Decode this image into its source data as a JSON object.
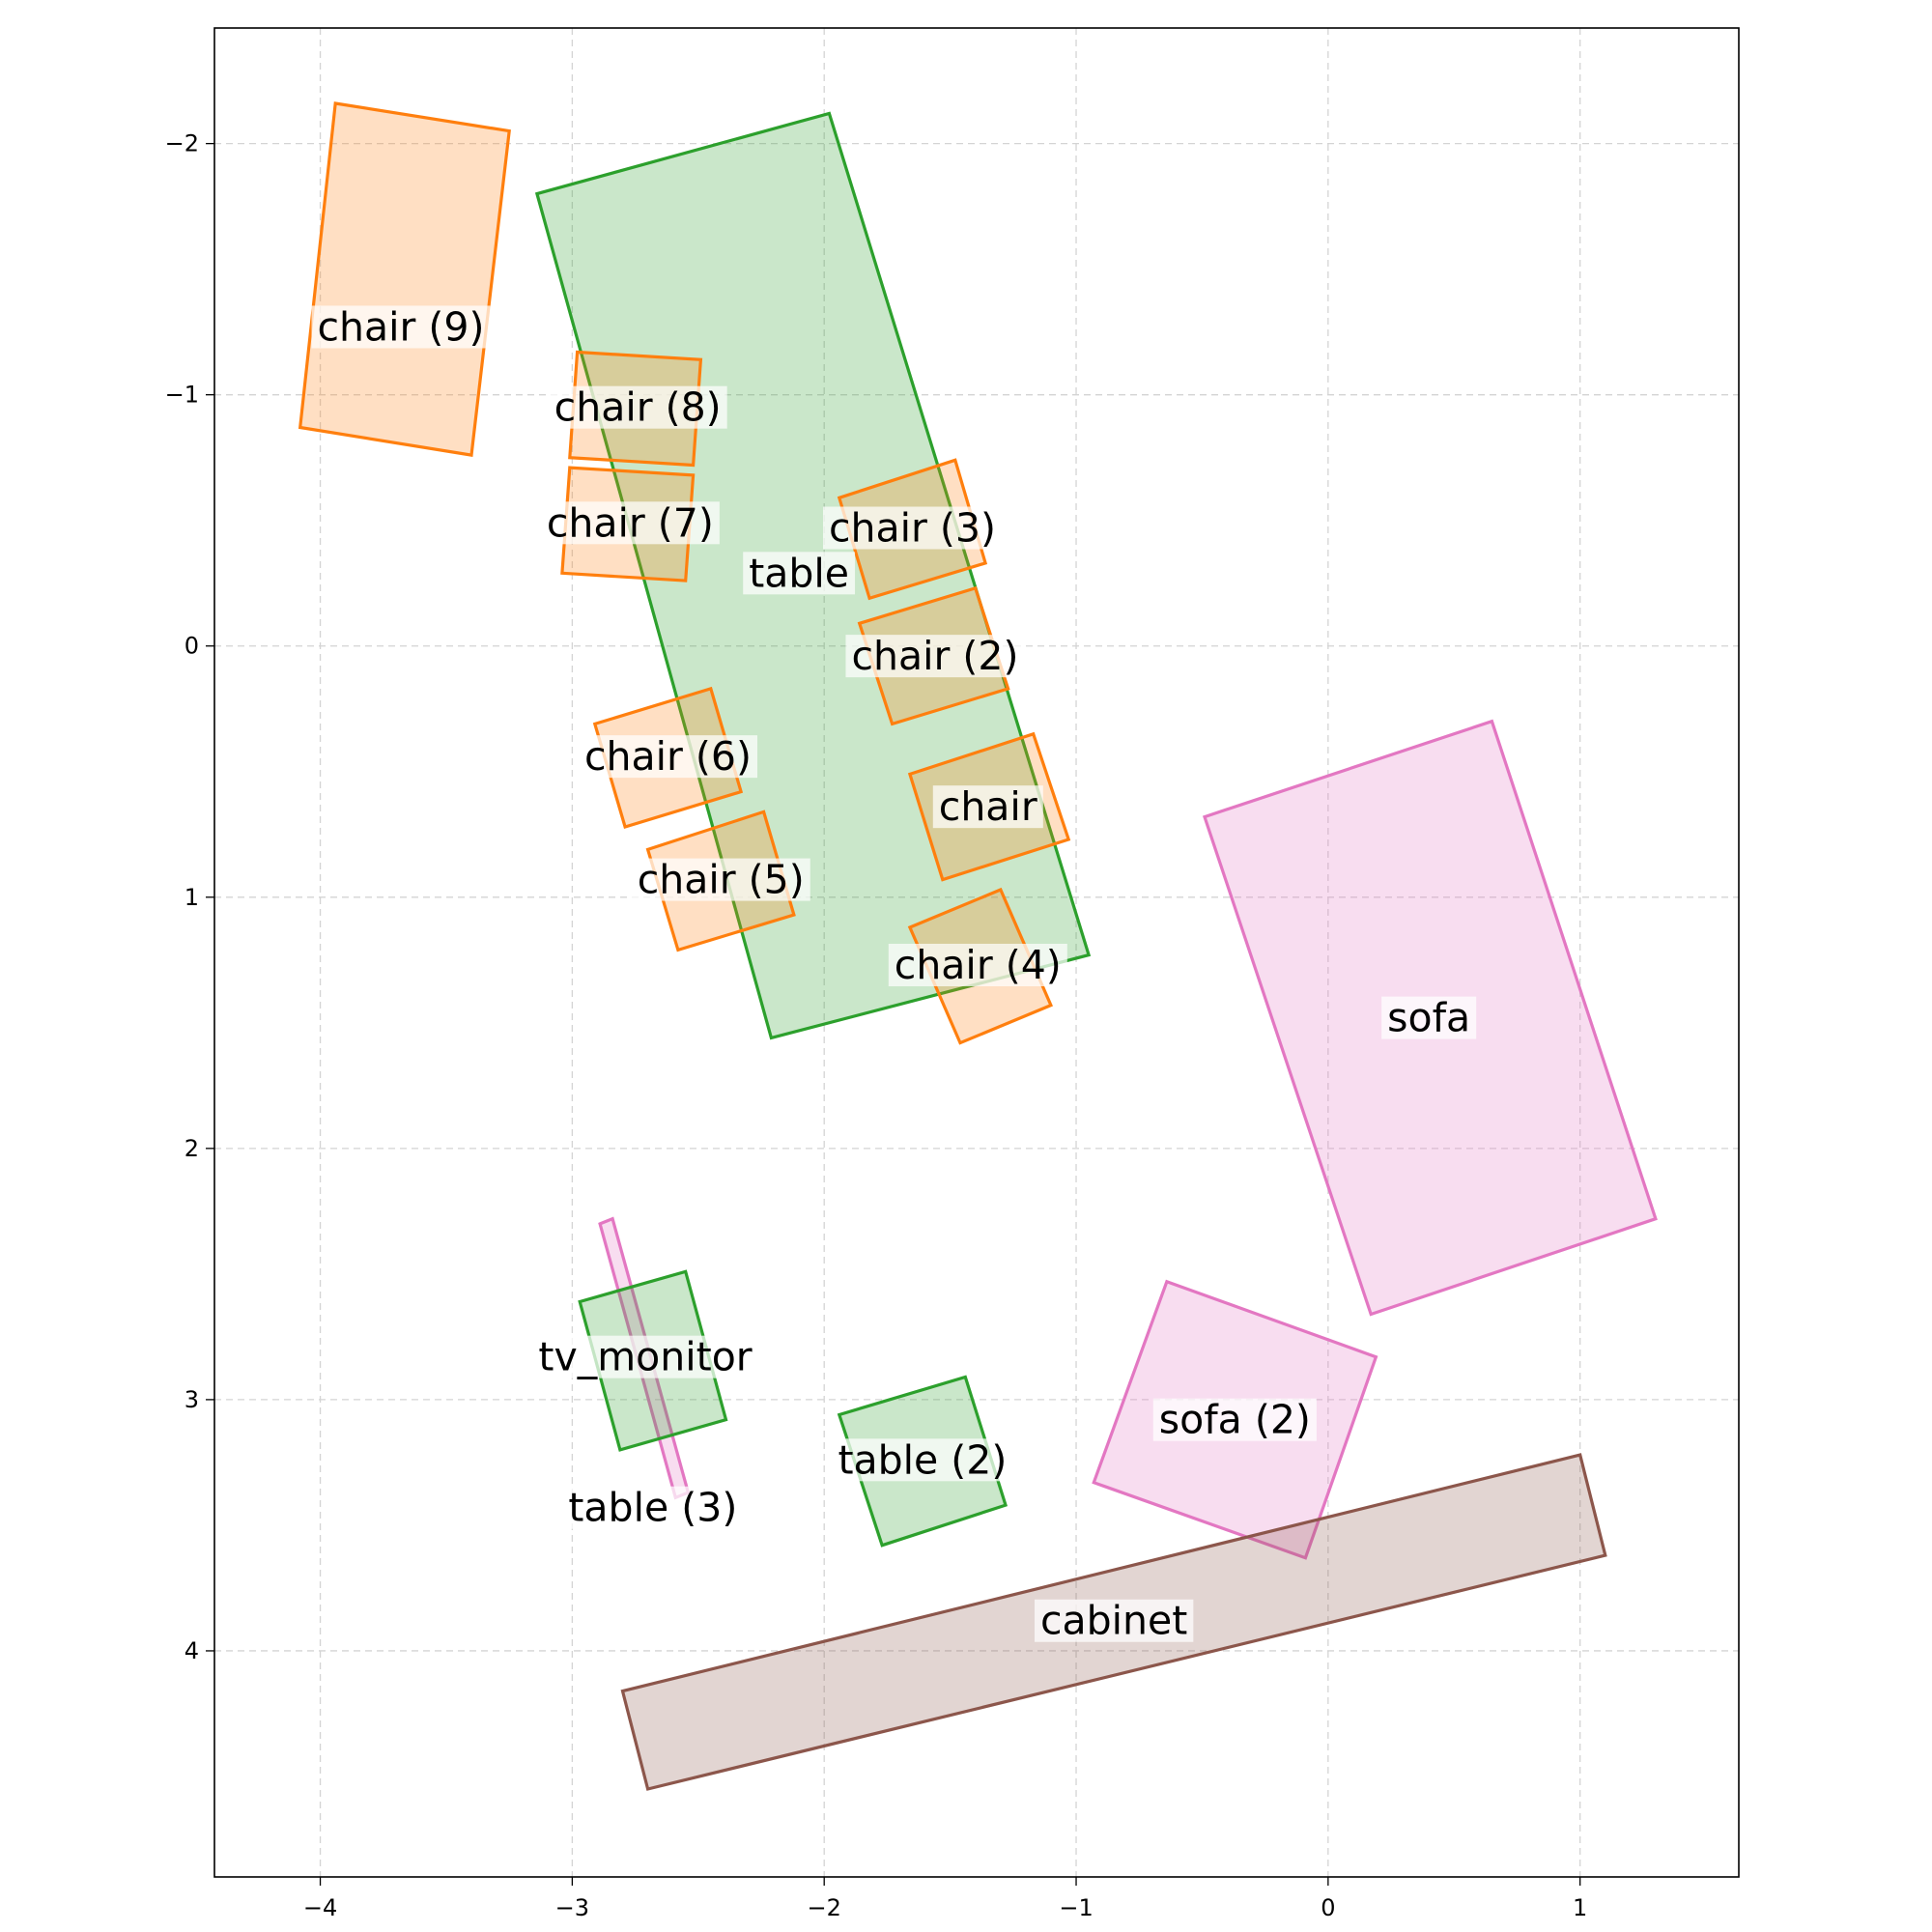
{
  "chart_data": {
    "type": "scatter",
    "title": "",
    "xlabel": "",
    "ylabel": "",
    "xlim": [
      -4.42,
      1.63
    ],
    "ylim": [
      4.9,
      -2.46
    ],
    "y_inverted": true,
    "grid": true,
    "x_ticks": [
      {
        "value": -4,
        "label": "−4"
      },
      {
        "value": -3,
        "label": "−3"
      },
      {
        "value": -2,
        "label": "−2"
      },
      {
        "value": -1,
        "label": "−1"
      },
      {
        "value": 0,
        "label": "0"
      },
      {
        "value": 1,
        "label": "1"
      }
    ],
    "y_ticks": [
      {
        "value": -2,
        "label": "−2"
      },
      {
        "value": -1,
        "label": "−1"
      },
      {
        "value": 0,
        "label": "0"
      },
      {
        "value": 1,
        "label": "1"
      },
      {
        "value": 2,
        "label": "2"
      },
      {
        "value": 3,
        "label": "3"
      },
      {
        "value": 4,
        "label": "4"
      }
    ],
    "colors": {
      "chair": "#ff7f0e",
      "table": "#2ca02c",
      "sofa": "#e377c2",
      "cabinet": "#8c564b"
    },
    "objects": [
      {
        "label": "table",
        "category": "table",
        "polygon": [
          [
            -3.14,
            -1.8
          ],
          [
            -1.98,
            -2.12
          ],
          [
            -0.95,
            1.23
          ],
          [
            -2.21,
            1.56
          ]
        ],
        "label_at": [
          -2.1,
          -0.29
        ]
      },
      {
        "label": "chair (9)",
        "category": "chair",
        "polygon": [
          [
            -3.94,
            -2.16
          ],
          [
            -3.25,
            -2.05
          ],
          [
            -3.4,
            -0.76
          ],
          [
            -4.08,
            -0.87
          ]
        ],
        "label_at": [
          -3.68,
          -1.27
        ]
      },
      {
        "label": "chair (8)",
        "category": "chair",
        "polygon": [
          [
            -2.98,
            -1.17
          ],
          [
            -2.49,
            -1.14
          ],
          [
            -2.52,
            -0.72
          ],
          [
            -3.01,
            -0.75
          ]
        ],
        "label_at": [
          -2.74,
          -0.95
        ]
      },
      {
        "label": "chair (7)",
        "category": "chair",
        "polygon": [
          [
            -3.01,
            -0.71
          ],
          [
            -2.52,
            -0.68
          ],
          [
            -2.55,
            -0.26
          ],
          [
            -3.04,
            -0.29
          ]
        ],
        "label_at": [
          -2.77,
          -0.49
        ]
      },
      {
        "label": "chair (3)",
        "category": "chair",
        "polygon": [
          [
            -1.94,
            -0.59
          ],
          [
            -1.48,
            -0.74
          ],
          [
            -1.36,
            -0.33
          ],
          [
            -1.82,
            -0.19
          ]
        ],
        "label_at": [
          -1.65,
          -0.47
        ]
      },
      {
        "label": "chair (2)",
        "category": "chair",
        "polygon": [
          [
            -1.86,
            -0.09
          ],
          [
            -1.4,
            -0.23
          ],
          [
            -1.27,
            0.17
          ],
          [
            -1.73,
            0.31
          ]
        ],
        "label_at": [
          -1.56,
          0.04
        ]
      },
      {
        "label": "chair (6)",
        "category": "chair",
        "polygon": [
          [
            -2.91,
            0.31
          ],
          [
            -2.45,
            0.17
          ],
          [
            -2.33,
            0.58
          ],
          [
            -2.79,
            0.72
          ]
        ],
        "label_at": [
          -2.62,
          0.44
        ]
      },
      {
        "label": "chair",
        "category": "chair",
        "polygon": [
          [
            -1.66,
            0.51
          ],
          [
            -1.17,
            0.35
          ],
          [
            -1.03,
            0.77
          ],
          [
            -1.53,
            0.93
          ]
        ],
        "label_at": [
          -1.35,
          0.64
        ]
      },
      {
        "label": "chair (5)",
        "category": "chair",
        "polygon": [
          [
            -2.7,
            0.81
          ],
          [
            -2.24,
            0.66
          ],
          [
            -2.12,
            1.07
          ],
          [
            -2.58,
            1.21
          ]
        ],
        "label_at": [
          -2.41,
          0.93
        ]
      },
      {
        "label": "chair (4)",
        "category": "chair",
        "polygon": [
          [
            -1.66,
            1.12
          ],
          [
            -1.3,
            0.97
          ],
          [
            -1.1,
            1.43
          ],
          [
            -1.46,
            1.58
          ]
        ],
        "label_at": [
          -1.39,
          1.27
        ]
      },
      {
        "label": "sofa",
        "category": "sofa",
        "polygon": [
          [
            -0.49,
            0.68
          ],
          [
            0.65,
            0.3
          ],
          [
            1.3,
            2.28
          ],
          [
            0.17,
            2.66
          ]
        ],
        "label_at": [
          0.4,
          1.48
        ]
      },
      {
        "label": "tv_monitor",
        "category": "sofa",
        "polygon": [
          [
            -2.89,
            2.3
          ],
          [
            -2.84,
            2.28
          ],
          [
            -2.54,
            3.37
          ],
          [
            -2.59,
            3.39
          ]
        ],
        "label_at": [
          -2.71,
          2.83
        ]
      },
      {
        "label": "table (3)",
        "category": "table",
        "polygon": [
          [
            -2.97,
            2.61
          ],
          [
            -2.55,
            2.49
          ],
          [
            -2.39,
            3.08
          ],
          [
            -2.81,
            3.2
          ]
        ],
        "label_at": [
          -2.68,
          3.43
        ]
      },
      {
        "label": "table (2)",
        "category": "table",
        "polygon": [
          [
            -1.94,
            3.06
          ],
          [
            -1.44,
            2.91
          ],
          [
            -1.28,
            3.42
          ],
          [
            -1.77,
            3.58
          ]
        ],
        "label_at": [
          -1.61,
          3.24
        ]
      },
      {
        "label": "sofa (2)",
        "category": "sofa",
        "polygon": [
          [
            -0.64,
            2.53
          ],
          [
            0.19,
            2.83
          ],
          [
            -0.09,
            3.63
          ],
          [
            -0.93,
            3.33
          ]
        ],
        "label_at": [
          -0.37,
          3.08
        ]
      },
      {
        "label": "cabinet",
        "category": "cabinet",
        "polygon": [
          [
            -2.8,
            4.16
          ],
          [
            1.0,
            3.22
          ],
          [
            1.1,
            3.62
          ],
          [
            -2.7,
            4.55
          ]
        ],
        "label_at": [
          -0.85,
          3.88
        ]
      }
    ]
  }
}
